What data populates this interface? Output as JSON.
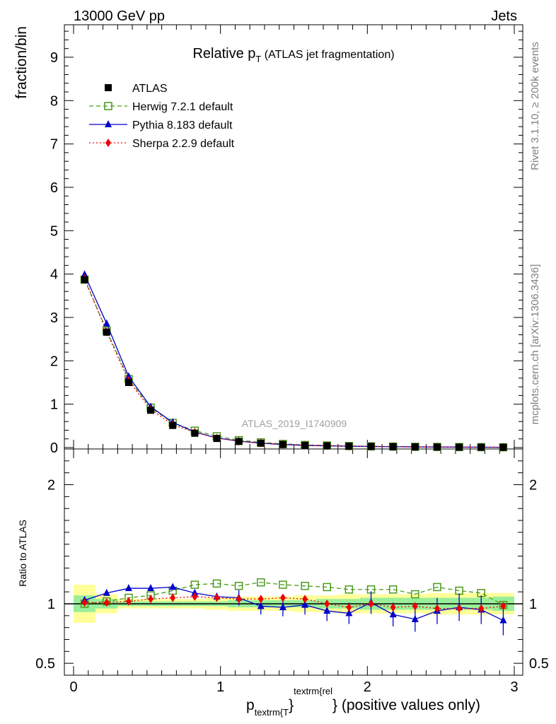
{
  "header": {
    "left": "13000 GeV pp",
    "right": "Jets"
  },
  "title": {
    "main": "Relative p",
    "sub": "T",
    "rest": " (ATLAS jet fragmentation)"
  },
  "side_text": {
    "rivet": "Rivet 3.1.10, ≥ 200k events",
    "site": "mcplots.cern.ch [arXiv:1306.3436]"
  },
  "watermark": "ATLAS_2019_I1740909",
  "ylabel_top": "fraction/bin",
  "ylabel_bottom": "Ratio to ATLAS",
  "xlabel": {
    "p": "p",
    "sub": "textrm{T",
    "sup": "textrm{rel",
    "close": "}",
    "rest": " (positive values only)"
  },
  "legend": [
    {
      "label": "ATLAS",
      "color": "#000000",
      "marker": "square-filled",
      "line": "none"
    },
    {
      "label": "Herwig 7.2.1 default",
      "color": "#4a9a1a",
      "marker": "square-open",
      "line": "dashed"
    },
    {
      "label": "Pythia 8.183 default",
      "color": "#0000cc",
      "marker": "triangle",
      "line": "solid"
    },
    {
      "label": "Sherpa 2.2.9 default",
      "color": "#ee0000",
      "marker": "diamond",
      "line": "dotted"
    }
  ],
  "chart_data": [
    {
      "type": "line",
      "panel": "main",
      "ylabel": "fraction/bin",
      "xlim": [
        0,
        3
      ],
      "ylim": [
        0,
        9.7
      ],
      "yticks": [
        "0",
        "1",
        "2",
        "3",
        "4",
        "5",
        "6",
        "7",
        "8",
        "9"
      ],
      "x": [
        0.075,
        0.225,
        0.375,
        0.525,
        0.675,
        0.825,
        0.975,
        1.125,
        1.275,
        1.425,
        1.575,
        1.725,
        1.875,
        2.025,
        2.175,
        2.325,
        2.475,
        2.625,
        2.775,
        2.925
      ],
      "series": [
        {
          "name": "ATLAS",
          "values": [
            3.87,
            2.66,
            1.5,
            0.86,
            0.51,
            0.33,
            0.21,
            0.14,
            0.1,
            0.07,
            0.05,
            0.04,
            0.03,
            0.025,
            0.02,
            0.015,
            0.012,
            0.01,
            0.008,
            0.006
          ]
        },
        {
          "name": "Herwig 7.2.1 default",
          "values": [
            3.87,
            2.7,
            1.58,
            0.92,
            0.57,
            0.39,
            0.26,
            0.17,
            0.12,
            0.083,
            0.06,
            0.047,
            0.035,
            0.028,
            0.022,
            0.017,
            0.014,
            0.011,
            0.009,
            0.006
          ]
        },
        {
          "name": "Pythia 8.183 default",
          "values": [
            3.99,
            2.86,
            1.64,
            0.94,
            0.58,
            0.36,
            0.22,
            0.15,
            0.1,
            0.07,
            0.05,
            0.04,
            0.03,
            0.025,
            0.02,
            0.015,
            0.012,
            0.01,
            0.008,
            0.006
          ]
        },
        {
          "name": "Sherpa 2.2.9 default",
          "values": [
            3.9,
            2.67,
            1.54,
            0.88,
            0.53,
            0.35,
            0.22,
            0.145,
            0.105,
            0.073,
            0.052,
            0.04,
            0.03,
            0.025,
            0.02,
            0.015,
            0.012,
            0.01,
            0.008,
            0.006
          ]
        }
      ]
    },
    {
      "type": "line",
      "panel": "ratio",
      "ylabel": "Ratio to ATLAS",
      "xlabel": "p_T^rel (positive values only)",
      "xlim": [
        0,
        3
      ],
      "ylim": [
        0.4,
        2.3
      ],
      "yticks": [
        "0.5",
        "1",
        "2"
      ],
      "xticks": [
        "0",
        "1",
        "2",
        "3"
      ],
      "x": [
        0.075,
        0.225,
        0.375,
        0.525,
        0.675,
        0.825,
        0.975,
        1.125,
        1.275,
        1.425,
        1.575,
        1.725,
        1.875,
        2.025,
        2.175,
        2.325,
        2.475,
        2.625,
        2.775,
        2.925
      ],
      "series": [
        {
          "name": "Herwig 7.2.1 default",
          "values": [
            1.0,
            1.02,
            1.05,
            1.07,
            1.11,
            1.16,
            1.17,
            1.15,
            1.18,
            1.16,
            1.15,
            1.14,
            1.12,
            1.12,
            1.12,
            1.08,
            1.14,
            1.11,
            1.09,
            0.99
          ]
        },
        {
          "name": "Pythia 8.183 default",
          "values": [
            1.03,
            1.09,
            1.13,
            1.13,
            1.14,
            1.09,
            1.06,
            1.05,
            0.98,
            0.97,
            0.99,
            0.94,
            0.92,
            1.01,
            0.91,
            0.87,
            0.94,
            0.97,
            0.95,
            0.86
          ]
        },
        {
          "name": "Sherpa 2.2.9 default",
          "values": [
            1.01,
            1.01,
            1.02,
            1.04,
            1.05,
            1.06,
            1.05,
            1.04,
            1.04,
            1.05,
            1.04,
            1.0,
            0.97,
            1.0,
            0.97,
            0.98,
            0.96,
            0.96,
            0.96,
            0.98
          ]
        }
      ],
      "band": {
        "x_edges": [
          0.0,
          0.15,
          0.3,
          0.45,
          0.6,
          0.75,
          0.9,
          1.05,
          1.2,
          1.35,
          1.5,
          1.65,
          1.8,
          1.95,
          2.1,
          2.25,
          2.4,
          2.55,
          2.7,
          2.85,
          3.0
        ],
        "stat": [
          0.07,
          0.04,
          0.02,
          0.02,
          0.02,
          0.02,
          0.02,
          0.03,
          0.03,
          0.03,
          0.03,
          0.04,
          0.04,
          0.05,
          0.05,
          0.05,
          0.05,
          0.05,
          0.05,
          0.06
        ],
        "total": [
          0.16,
          0.08,
          0.04,
          0.04,
          0.04,
          0.04,
          0.05,
          0.06,
          0.06,
          0.06,
          0.07,
          0.07,
          0.08,
          0.08,
          0.08,
          0.08,
          0.09,
          0.09,
          0.09,
          0.09
        ]
      }
    }
  ]
}
